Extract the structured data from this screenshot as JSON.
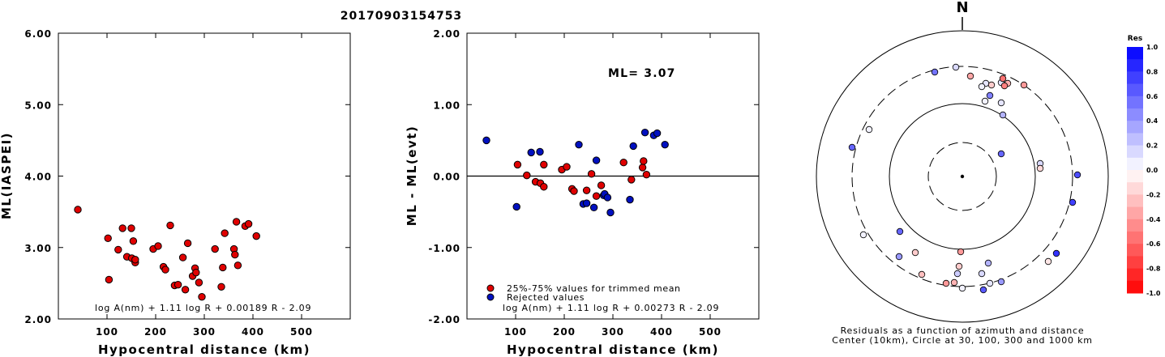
{
  "title": "20170903154753",
  "chart_data": [
    {
      "type": "scatter",
      "name": "ml-vs-distance",
      "xlabel": "Hypocentral distance (km)",
      "ylabel": "ML(IASPEI)",
      "xlim": [
        0,
        600
      ],
      "ylim": [
        2.0,
        6.0
      ],
      "xticks": [
        "100",
        "200",
        "300",
        "400",
        "500"
      ],
      "xtick_values": [
        100,
        200,
        300,
        400,
        500
      ],
      "yticks": [
        "2.00",
        "3.00",
        "4.00",
        "5.00",
        "6.00"
      ],
      "ytick_values": [
        2,
        3,
        4,
        5,
        6
      ],
      "formula": "log A(nm) + 1.11 log R + 0.00189 R - 2.09",
      "marker_color": "#e00000",
      "points": [
        [
          40,
          3.53
        ],
        [
          102,
          3.13
        ],
        [
          104,
          2.55
        ],
        [
          123,
          2.97
        ],
        [
          132,
          3.27
        ],
        [
          141,
          2.87
        ],
        [
          150,
          3.27
        ],
        [
          151,
          2.85
        ],
        [
          154,
          3.09
        ],
        [
          158,
          2.79
        ],
        [
          158,
          2.83
        ],
        [
          195,
          2.98
        ],
        [
          205,
          3.02
        ],
        [
          216,
          2.73
        ],
        [
          220,
          2.69
        ],
        [
          230,
          3.31
        ],
        [
          239,
          2.47
        ],
        [
          246,
          2.48
        ],
        [
          256,
          2.86
        ],
        [
          261,
          2.41
        ],
        [
          266,
          3.06
        ],
        [
          276,
          2.6
        ],
        [
          281,
          2.71
        ],
        [
          283,
          2.65
        ],
        [
          289,
          2.51
        ],
        [
          295,
          2.31
        ],
        [
          322,
          2.98
        ],
        [
          335,
          2.45
        ],
        [
          338,
          2.72
        ],
        [
          342,
          3.2
        ],
        [
          361,
          2.98
        ],
        [
          363,
          2.9
        ],
        [
          366,
          3.36
        ],
        [
          369,
          2.75
        ],
        [
          384,
          3.3
        ],
        [
          391,
          3.33
        ],
        [
          407,
          3.16
        ]
      ]
    },
    {
      "type": "scatter",
      "name": "residual-vs-distance",
      "xlabel": "Hypocentral distance (km)",
      "ylabel": "ML - ML(evt)",
      "xlim": [
        0,
        600
      ],
      "ylim": [
        -2.0,
        2.0
      ],
      "xticks": [
        "100",
        "200",
        "300",
        "400",
        "500"
      ],
      "xtick_values": [
        100,
        200,
        300,
        400,
        500
      ],
      "yticks": [
        "-2.00",
        "-1.00",
        "0.00",
        "1.00",
        "2.00"
      ],
      "ytick_values": [
        -2,
        -1,
        0,
        1,
        2
      ],
      "ml_label": "ML= 3.07",
      "formula": "log A(nm) + 1.11 log R + 0.00273 R - 2.09",
      "legend": [
        {
          "label": "25%-75% values for trimmed mean",
          "color": "#e00000"
        },
        {
          "label": "Rejected values",
          "color": "#0010c0"
        }
      ],
      "series": [
        {
          "name": "25%-75% values for trimmed mean",
          "color": "#e00000",
          "points": [
            [
              104,
              0.16
            ],
            [
              123,
              0.01
            ],
            [
              141,
              -0.08
            ],
            [
              151,
              -0.1
            ],
            [
              158,
              0.16
            ],
            [
              158,
              -0.15
            ],
            [
              195,
              0.09
            ],
            [
              205,
              0.13
            ],
            [
              216,
              -0.18
            ],
            [
              220,
              -0.21
            ],
            [
              246,
              -0.2
            ],
            [
              256,
              0.03
            ],
            [
              266,
              -0.28
            ],
            [
              276,
              -0.13
            ],
            [
              322,
              0.19
            ],
            [
              338,
              -0.05
            ],
            [
              361,
              0.12
            ],
            [
              363,
              0.21
            ],
            [
              369,
              0.02
            ]
          ]
        },
        {
          "name": "Rejected values",
          "color": "#0010c0",
          "points": [
            [
              40,
              0.5
            ],
            [
              102,
              -0.43
            ],
            [
              132,
              0.33
            ],
            [
              150,
              0.34
            ],
            [
              230,
              0.44
            ],
            [
              239,
              -0.39
            ],
            [
              246,
              -0.38
            ],
            [
              261,
              -0.44
            ],
            [
              266,
              0.22
            ],
            [
              281,
              -0.27
            ],
            [
              283,
              -0.25
            ],
            [
              289,
              -0.3
            ],
            [
              295,
              -0.51
            ],
            [
              335,
              -0.33
            ],
            [
              342,
              0.42
            ],
            [
              366,
              0.61
            ],
            [
              384,
              0.57
            ],
            [
              391,
              0.6
            ],
            [
              407,
              0.44
            ]
          ]
        }
      ]
    },
    {
      "type": "scatter",
      "name": "azimuth-residual-polar",
      "north_label": "N",
      "caption_line1": "Residuals as a function of azimuth and distance",
      "caption_line2": "Center (10km), Circle at 30, 100, 300 and 1000 km",
      "colorbar_title": "Res",
      "colorbar_ticks": [
        "1.0",
        "0.8",
        "0.6",
        "0.4",
        "0.2",
        "0.0",
        "-0.2",
        "-0.4",
        "-0.6",
        "-0.8",
        "-1.0"
      ],
      "colorbar_tick_values": [
        1.0,
        0.8,
        0.6,
        0.4,
        0.2,
        0.0,
        -0.2,
        -0.4,
        -0.6,
        -0.8,
        -1.0
      ],
      "circles_km": [
        30,
        100,
        300,
        1000
      ],
      "points_dx_dy_res": [
        [
          -34,
          129,
          0.55
        ],
        [
          -8,
          135,
          0.15
        ],
        [
          10,
          124,
          -0.35
        ],
        [
          29,
          115,
          0.1
        ],
        [
          24,
          111,
          0.05
        ],
        [
          36,
          113,
          -0.2
        ],
        [
          48,
          116,
          0.1
        ],
        [
          50,
          121,
          -0.55
        ],
        [
          56,
          115,
          -0.3
        ],
        [
          52,
          112,
          -0.5
        ],
        [
          76,
          113,
          -0.4
        ],
        [
          34,
          100,
          0.5
        ],
        [
          28,
          93,
          0.05
        ],
        [
          48,
          91,
          0.1
        ],
        [
          50,
          76,
          0.3
        ],
        [
          -136,
          36,
          0.6
        ],
        [
          -115,
          58,
          0.05
        ],
        [
          48,
          28,
          0.6
        ],
        [
          96,
          16,
          0.15
        ],
        [
          96,
          10,
          -0.15
        ],
        [
          142,
          2,
          0.7
        ],
        [
          136,
          -32,
          0.75
        ],
        [
          -122,
          -72,
          0.05
        ],
        [
          -77,
          -68,
          0.6
        ],
        [
          -78,
          -99,
          0.4
        ],
        [
          -58,
          -94,
          -0.2
        ],
        [
          -50,
          -121,
          -0.25
        ],
        [
          -2,
          -93,
          -0.4
        ],
        [
          32,
          -107,
          0.3
        ],
        [
          -4,
          -111,
          -0.2
        ],
        [
          -6,
          -120,
          0.2
        ],
        [
          0,
          -138,
          0.05
        ],
        [
          24,
          -120,
          0.15
        ],
        [
          34,
          -132,
          0.1
        ],
        [
          48,
          -130,
          0.4
        ],
        [
          -20,
          -132,
          -0.4
        ],
        [
          -10,
          -131,
          -0.3
        ],
        [
          106,
          -105,
          -0.1
        ],
        [
          116,
          -95,
          0.8
        ],
        [
          26,
          -140,
          0.65
        ]
      ]
    }
  ]
}
